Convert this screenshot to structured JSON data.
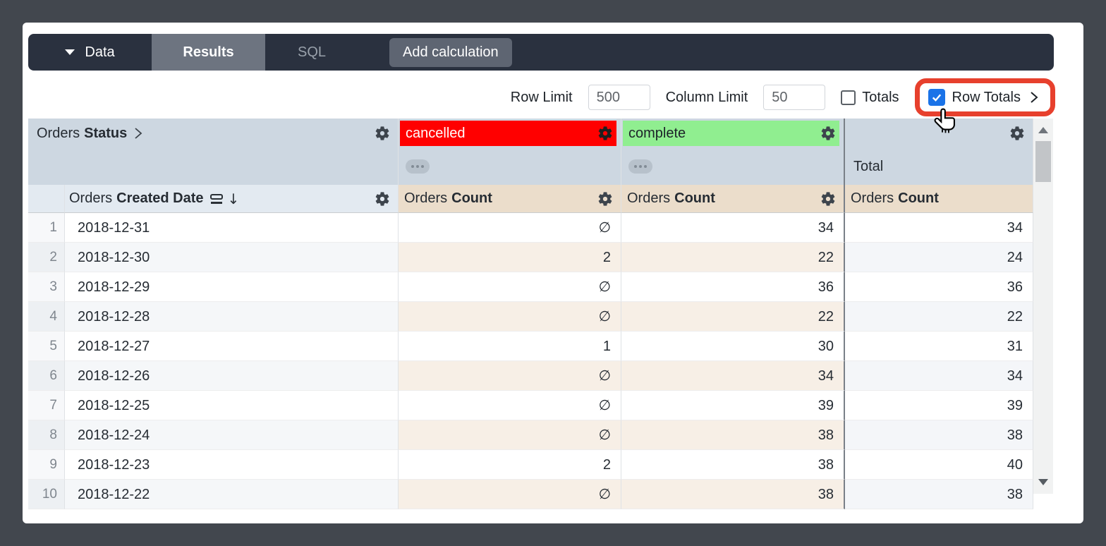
{
  "toolbar": {
    "data_label": "Data",
    "results_tab": "Results",
    "sql_tab": "SQL",
    "add_calculation": "Add calculation"
  },
  "controls": {
    "row_limit_label": "Row Limit",
    "row_limit_value": "500",
    "column_limit_label": "Column Limit",
    "column_limit_value": "50",
    "totals_label": "Totals",
    "totals_checked": false,
    "row_totals_label": "Row Totals",
    "row_totals_checked": true
  },
  "colors": {
    "accent_blue": "#1a73e8",
    "highlight_red": "#e7402d",
    "pivot_cancelled_bg": "#ff0000",
    "pivot_complete_bg": "#90ee90",
    "header_band_bg": "#cdd7e1",
    "dimension_header_bg": "#e3eaf1",
    "measure_header_bg": "#ebddcb"
  },
  "table": {
    "pivot_field": {
      "view": "Orders",
      "field": "Status"
    },
    "pivot_values": [
      "cancelled",
      "complete"
    ],
    "total_label": "Total",
    "dimension": {
      "view": "Orders",
      "field": "Created Date"
    },
    "measure": {
      "view": "Orders",
      "field": "Count"
    },
    "null_symbol": "∅",
    "rows": [
      {
        "n": "1",
        "date": "2018-12-31",
        "cancelled": "∅",
        "complete": "34",
        "total": "34"
      },
      {
        "n": "2",
        "date": "2018-12-30",
        "cancelled": "2",
        "complete": "22",
        "total": "24"
      },
      {
        "n": "3",
        "date": "2018-12-29",
        "cancelled": "∅",
        "complete": "36",
        "total": "36"
      },
      {
        "n": "4",
        "date": "2018-12-28",
        "cancelled": "∅",
        "complete": "22",
        "total": "22"
      },
      {
        "n": "5",
        "date": "2018-12-27",
        "cancelled": "1",
        "complete": "30",
        "total": "31"
      },
      {
        "n": "6",
        "date": "2018-12-26",
        "cancelled": "∅",
        "complete": "34",
        "total": "34"
      },
      {
        "n": "7",
        "date": "2018-12-25",
        "cancelled": "∅",
        "complete": "39",
        "total": "39"
      },
      {
        "n": "8",
        "date": "2018-12-24",
        "cancelled": "∅",
        "complete": "38",
        "total": "38"
      },
      {
        "n": "9",
        "date": "2018-12-23",
        "cancelled": "2",
        "complete": "38",
        "total": "40"
      },
      {
        "n": "10",
        "date": "2018-12-22",
        "cancelled": "∅",
        "complete": "38",
        "total": "38"
      }
    ]
  }
}
